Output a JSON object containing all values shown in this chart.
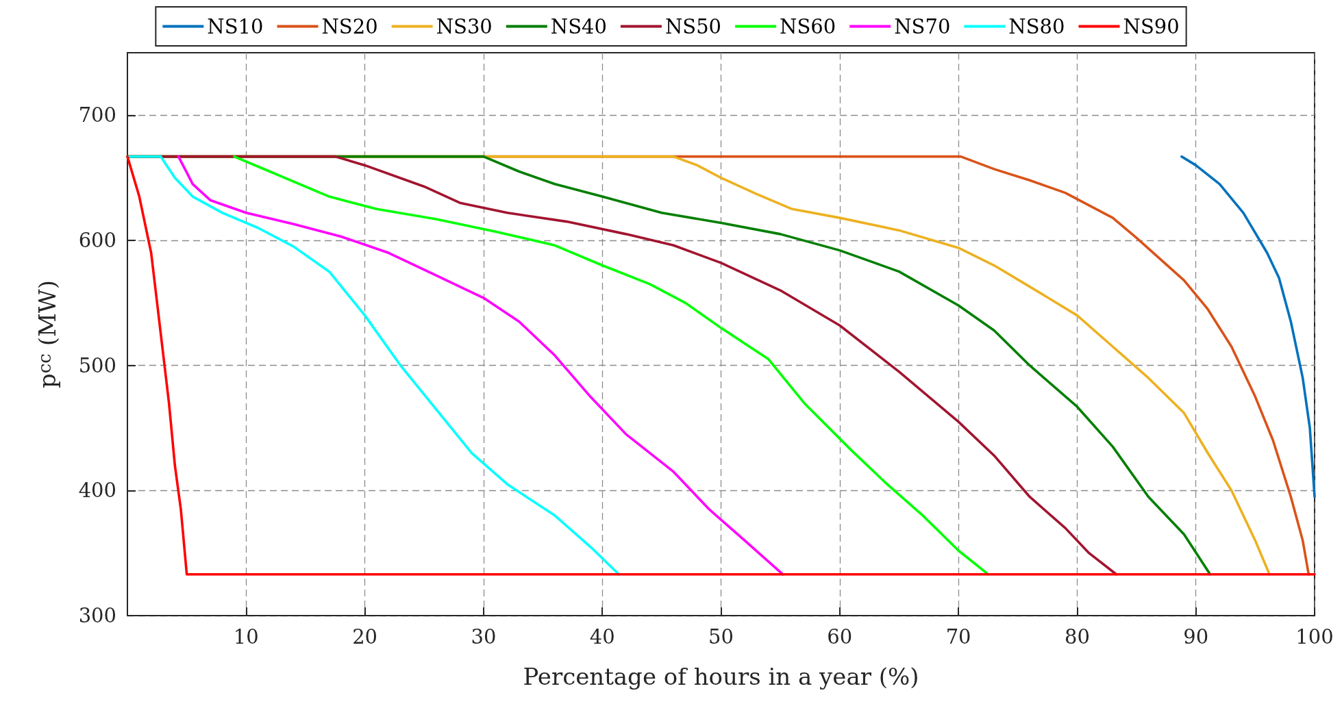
{
  "chart_data": {
    "type": "line",
    "xlabel": "Percentage of hours in a year (%)",
    "ylabel": "p$^{cc}$ (MW)",
    "xlim": [
      0,
      100
    ],
    "xticks": [
      10,
      20,
      30,
      40,
      50,
      60,
      70,
      80,
      90,
      100
    ],
    "ylim": [
      300,
      750
    ],
    "yticks": [
      300,
      400,
      500,
      600,
      700
    ],
    "grid": true,
    "legend": "top",
    "marker": "none",
    "line_style": "solid",
    "series": [
      {
        "name": "NS10",
        "color": "#0072bd",
        "x": [
          88.8,
          90,
          92,
          94,
          96,
          97,
          98,
          99,
          99.6,
          100
        ],
        "values": [
          667,
          660,
          645,
          622,
          590,
          570,
          535,
          490,
          450,
          395
        ]
      },
      {
        "name": "NS20",
        "color": "#d95319",
        "x": [
          0,
          70.2,
          73,
          76,
          79,
          81,
          83,
          85,
          87,
          89,
          91,
          93,
          95,
          96.5,
          98,
          99,
          99.5
        ],
        "values": [
          667,
          667,
          657,
          648,
          638,
          628,
          618,
          602,
          585,
          568,
          545,
          515,
          475,
          440,
          395,
          360,
          333
        ]
      },
      {
        "name": "NS30",
        "color": "#edb120",
        "x": [
          0,
          46,
          48,
          50,
          53,
          56,
          60,
          65,
          70,
          73,
          76,
          80,
          83,
          86,
          89,
          91,
          93,
          95,
          96.2
        ],
        "values": [
          667,
          667,
          660,
          650,
          637,
          625,
          618,
          608,
          594,
          580,
          563,
          540,
          515,
          490,
          462,
          430,
          400,
          360,
          333
        ]
      },
      {
        "name": "NS40",
        "color": "#007f00",
        "x": [
          0,
          30,
          33,
          36,
          40,
          45,
          50,
          55,
          60,
          65,
          70,
          73,
          76,
          80,
          83,
          86,
          89,
          91.2
        ],
        "values": [
          667,
          667,
          655,
          645,
          635,
          622,
          614,
          605,
          592,
          575,
          548,
          528,
          500,
          467,
          435,
          395,
          365,
          333
        ]
      },
      {
        "name": "NS50",
        "color": "#a2142f",
        "x": [
          0,
          17.5,
          20,
          25,
          28,
          32,
          37,
          42,
          46,
          50,
          55,
          60,
          65,
          70,
          73,
          76,
          79,
          81,
          83.3
        ],
        "values": [
          667,
          667,
          660,
          643,
          630,
          622,
          615,
          605,
          596,
          582,
          560,
          532,
          495,
          455,
          428,
          395,
          370,
          350,
          333
        ]
      },
      {
        "name": "NS60",
        "color": "#00ff00",
        "x": [
          9,
          12,
          17,
          21,
          26,
          31,
          36,
          40,
          44,
          47,
          50,
          54,
          57,
          61,
          64,
          67,
          70,
          72.5
        ],
        "values": [
          667,
          655,
          635,
          625,
          617,
          607,
          596,
          580,
          565,
          550,
          530,
          505,
          470,
          432,
          405,
          380,
          352,
          333
        ]
      },
      {
        "name": "NS70",
        "color": "#ff00ff",
        "x": [
          4.3,
          5.5,
          7,
          10,
          14,
          18,
          22,
          26,
          30,
          33,
          36,
          39,
          42,
          46,
          49,
          52,
          55.2
        ],
        "values": [
          667,
          645,
          632,
          622,
          613,
          603,
          590,
          572,
          554,
          535,
          508,
          475,
          445,
          415,
          385,
          360,
          333
        ]
      },
      {
        "name": "NS80",
        "color": "#00ffff",
        "x": [
          0,
          2.8,
          4,
          5.5,
          8,
          11,
          14,
          17,
          20,
          23,
          26,
          29,
          32,
          36,
          39,
          41.4
        ],
        "values": [
          667,
          667,
          650,
          635,
          622,
          610,
          595,
          575,
          540,
          500,
          465,
          430,
          405,
          380,
          355,
          333
        ]
      },
      {
        "name": "NS90",
        "color": "#ff0000",
        "x": [
          0,
          1,
          2,
          3,
          3.5,
          4,
          4.5,
          5,
          100
        ],
        "values": [
          667,
          635,
          590,
          510,
          470,
          420,
          385,
          333,
          333
        ]
      }
    ]
  }
}
